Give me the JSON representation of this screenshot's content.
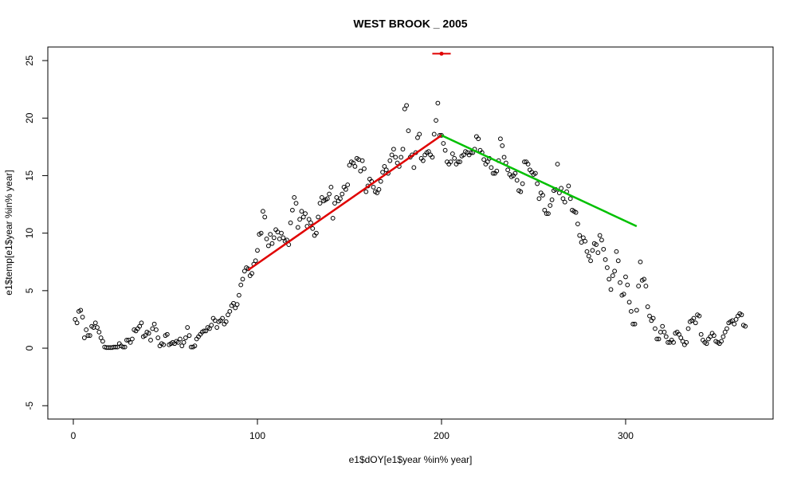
{
  "chart_data": {
    "type": "scatter",
    "title": "WEST BROOK _ 2005",
    "x_label": "e1$dOY[e1$year %in% year]",
    "y_label": "e1$temp[e1$year %in% year]",
    "xlim": [
      -13.85,
      380.1
    ],
    "ylim": [
      -6.16,
      26.18
    ],
    "xticks": [
      0,
      100,
      200,
      300
    ],
    "yticks": [
      -5,
      0,
      5,
      10,
      15,
      20,
      25
    ],
    "series": [
      {
        "color": "#000000",
        "x": [
          1,
          2,
          3,
          4,
          5,
          6,
          7,
          8,
          9,
          10,
          11,
          12,
          13,
          14,
          15,
          16,
          17,
          18,
          19,
          20,
          21,
          22,
          23,
          24,
          25,
          26,
          27,
          28,
          29,
          30,
          31,
          32,
          33,
          34,
          35,
          36,
          37,
          38,
          39,
          40,
          41,
          42,
          43,
          44,
          45,
          46,
          47,
          48,
          49,
          50,
          51,
          52,
          53,
          54,
          55,
          56,
          57,
          58,
          59,
          60,
          61,
          62,
          63,
          64,
          65,
          66,
          67,
          68,
          69,
          70,
          71,
          72,
          73,
          74,
          75,
          76,
          77,
          78,
          79,
          80,
          81,
          82,
          83,
          84,
          85,
          86,
          87,
          88,
          89,
          90,
          91,
          92,
          93,
          94,
          95,
          96,
          97,
          98,
          99,
          100,
          101,
          102,
          103,
          104,
          105,
          106,
          107,
          108,
          109,
          110,
          111,
          112,
          113,
          114,
          115,
          116,
          117,
          118,
          119,
          120,
          121,
          122,
          123,
          124,
          125,
          126,
          127,
          128,
          129,
          130,
          131,
          132,
          133,
          134,
          135,
          136,
          137,
          138,
          139,
          140,
          141,
          142,
          143,
          144,
          145,
          146,
          147,
          148,
          149,
          150,
          151,
          152,
          153,
          154,
          155,
          156,
          157,
          158,
          159,
          160,
          161,
          162,
          163,
          164,
          165,
          166,
          167,
          168,
          169,
          170,
          171,
          172,
          173,
          174,
          175,
          176,
          177,
          178,
          179,
          180,
          181,
          182,
          183,
          184,
          185,
          186,
          187,
          188,
          189,
          190,
          191,
          192,
          193,
          194,
          195,
          196,
          197,
          198,
          199,
          200,
          201,
          202,
          203,
          204,
          205,
          206,
          207,
          208,
          209,
          210,
          211,
          212,
          213,
          214,
          215,
          216,
          217,
          218,
          219,
          220,
          221,
          222,
          223,
          224,
          225,
          226,
          227,
          228,
          229,
          230,
          231,
          232,
          233,
          234,
          235,
          236,
          237,
          238,
          239,
          240,
          241,
          242,
          243,
          244,
          245,
          246,
          247,
          248,
          249,
          250,
          251,
          252,
          253,
          254,
          255,
          256,
          257,
          258,
          259,
          260,
          261,
          262,
          263,
          264,
          265,
          266,
          267,
          268,
          269,
          270,
          271,
          272,
          273,
          274,
          275,
          276,
          277,
          278,
          279,
          280,
          281,
          282,
          283,
          284,
          285,
          286,
          287,
          288,
          289,
          290,
          291,
          292,
          293,
          294,
          295,
          296,
          297,
          298,
          299,
          300,
          301,
          302,
          303,
          304,
          305,
          306,
          307,
          308,
          309,
          310,
          311,
          312,
          313,
          314,
          315,
          316,
          317,
          318,
          319,
          320,
          321,
          322,
          323,
          324,
          325,
          326,
          327,
          328,
          329,
          330,
          331,
          332,
          333,
          334,
          335,
          336,
          337,
          338,
          339,
          340,
          341,
          342,
          343,
          344,
          345,
          346,
          347,
          348,
          349,
          350,
          351,
          352,
          353,
          354,
          355,
          356,
          357,
          358,
          359,
          360,
          361,
          362,
          363,
          364,
          365
        ],
        "values": [
          2.5,
          2.2,
          3.2,
          3.3,
          2.7,
          0.9,
          1.6,
          1.1,
          1.1,
          1.9,
          1.8,
          2.2,
          1.8,
          1.4,
          0.9,
          0.6,
          0.1,
          0.05,
          0.05,
          0.05,
          0.05,
          0.1,
          0.1,
          0.1,
          0.4,
          0.2,
          0.1,
          0.1,
          0.7,
          0.7,
          0.5,
          0.8,
          1.6,
          1.5,
          1.7,
          1.9,
          2.2,
          1.0,
          1.1,
          1.4,
          1.3,
          0.7,
          1.7,
          2.1,
          1.6,
          0.9,
          0.2,
          0.4,
          0.3,
          1.1,
          1.2,
          0.3,
          0.4,
          0.5,
          0.4,
          0.6,
          0.5,
          0.8,
          0.2,
          0.5,
          0.9,
          1.8,
          1.1,
          0.1,
          0.1,
          0.2,
          0.8,
          1.0,
          1.2,
          1.4,
          1.5,
          1.5,
          1.8,
          1.7,
          2.0,
          2.6,
          2.4,
          1.8,
          2.3,
          2.4,
          2.6,
          2.1,
          2.3,
          2.9,
          3.2,
          3.7,
          3.9,
          3.5,
          3.8,
          4.6,
          5.5,
          6.0,
          6.7,
          7.0,
          6.9,
          6.3,
          6.5,
          7.3,
          7.6,
          8.5,
          9.9,
          10.0,
          11.9,
          11.4,
          9.5,
          8.9,
          9.9,
          9.1,
          9.6,
          10.3,
          10.1,
          9.5,
          10.0,
          9.6,
          9.3,
          9.4,
          9.0,
          10.9,
          12.0,
          13.1,
          12.6,
          10.5,
          11.2,
          11.9,
          11.4,
          11.7,
          10.6,
          11.2,
          10.9,
          10.4,
          9.8,
          10.0,
          11.4,
          12.6,
          13.1,
          12.8,
          12.9,
          13.0,
          13.4,
          14.0,
          11.3,
          12.6,
          13.1,
          12.8,
          13.0,
          13.4,
          14.0,
          13.8,
          14.2,
          15.9,
          16.2,
          16.1,
          15.8,
          16.5,
          16.4,
          15.4,
          16.3,
          15.6,
          13.6,
          14.1,
          14.7,
          14.5,
          14.0,
          13.6,
          13.5,
          13.8,
          14.5,
          15.3,
          15.8,
          15.5,
          15.2,
          16.3,
          16.8,
          17.3,
          16.6,
          16.1,
          15.8,
          16.6,
          17.3,
          20.8,
          21.1,
          18.9,
          16.6,
          16.8,
          15.7,
          17.0,
          18.3,
          18.6,
          16.5,
          16.3,
          16.8,
          17.0,
          17.1,
          16.8,
          16.6,
          18.6,
          19.8,
          21.3,
          18.5,
          18.5,
          17.8,
          17.2,
          16.2,
          16.0,
          16.2,
          16.9,
          16.5,
          16.0,
          16.2,
          16.2,
          16.7,
          16.8,
          17.1,
          17.0,
          16.8,
          17.0,
          17.0,
          17.3,
          18.4,
          18.2,
          17.2,
          17.0,
          16.4,
          16.0,
          16.2,
          16.5,
          15.7,
          15.2,
          15.2,
          15.4,
          16.3,
          18.2,
          17.6,
          16.6,
          16.1,
          15.5,
          15.1,
          14.9,
          15.0,
          15.2,
          14.6,
          13.7,
          13.6,
          14.3,
          16.2,
          16.2,
          16.0,
          15.5,
          15.3,
          15.1,
          15.2,
          14.3,
          13.0,
          13.5,
          13.3,
          12.0,
          11.7,
          11.7,
          12.4,
          12.9,
          13.7,
          13.8,
          16.0,
          13.5,
          13.9,
          13.0,
          12.7,
          13.6,
          14.1,
          13.0,
          12.0,
          11.9,
          11.8,
          10.8,
          9.8,
          9.2,
          9.6,
          9.3,
          8.4,
          8.0,
          7.6,
          8.5,
          9.1,
          9.0,
          8.3,
          9.8,
          9.4,
          8.6,
          7.7,
          7.0,
          6.0,
          5.1,
          6.3,
          6.7,
          8.4,
          7.6,
          5.7,
          4.6,
          4.7,
          6.2,
          5.5,
          4.0,
          3.2,
          2.1,
          2.1,
          3.3,
          5.4,
          7.5,
          5.9,
          6.0,
          5.4,
          3.6,
          2.8,
          2.4,
          2.6,
          1.7,
          0.8,
          0.8,
          1.4,
          1.9,
          1.4,
          1.0,
          0.5,
          0.5,
          0.7,
          0.5,
          1.3,
          1.4,
          1.2,
          0.9,
          0.6,
          0.3,
          0.5,
          1.7,
          2.3,
          2.4,
          2.6,
          2.2,
          2.9,
          2.8,
          1.2,
          0.7,
          0.5,
          0.4,
          0.8,
          1.0,
          1.3,
          1.1,
          0.6,
          0.5,
          0.4,
          0.6,
          1.0,
          1.4,
          1.7,
          2.2,
          2.3,
          2.4,
          2.1,
          2.5,
          2.8,
          3.0,
          2.9,
          2.0,
          1.9
        ]
      }
    ],
    "lines": [
      {
        "color": "#e00000",
        "x": [
          95,
          200
        ],
        "values": [
          6.8,
          18.5
        ]
      },
      {
        "color": "#00c000",
        "x": [
          200,
          306
        ],
        "values": [
          18.5,
          10.6
        ]
      }
    ],
    "point": {
      "color": "#e00000",
      "x": 200,
      "value": 25.6,
      "x_error": 5
    }
  }
}
